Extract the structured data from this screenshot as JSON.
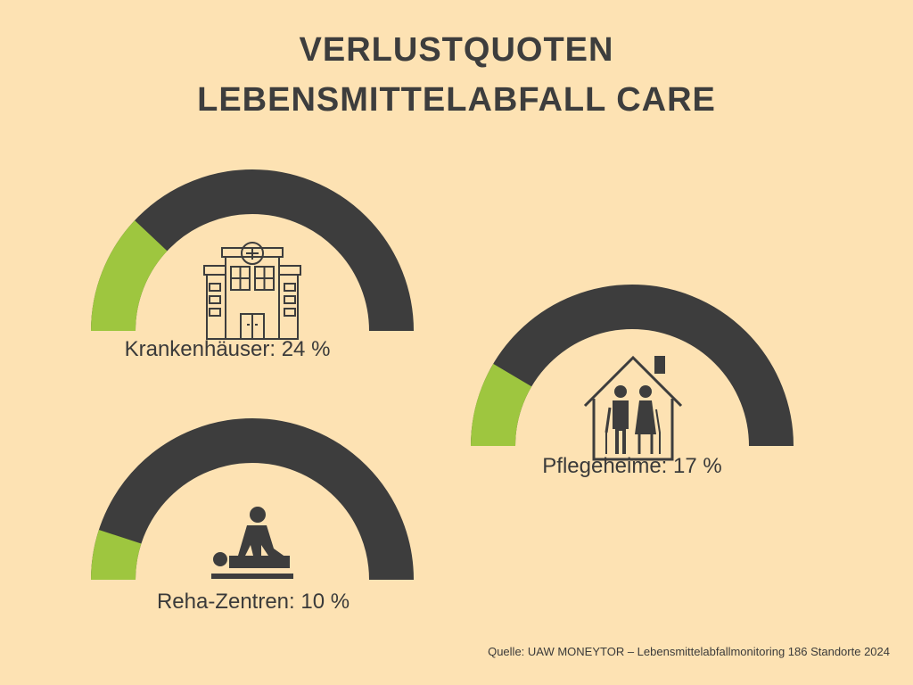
{
  "title": {
    "line1": "VERLUSTQUOTEN",
    "line2": "LEBENSMITTELABFALL CARE"
  },
  "colors": {
    "background": "#fde2b3",
    "gauge_track": "#3d3d3d",
    "gauge_value": "#9ec63f",
    "text": "#3d3d3d"
  },
  "chart_data": {
    "type": "gauge",
    "title": "VERLUSTQUOTEN LEBENSMITTELABFALL CARE",
    "unit": "%",
    "range": [
      0,
      100
    ],
    "items": [
      {
        "category": "Krankenhäuser",
        "value": 24,
        "label": "Krankenhäuser: 24 %",
        "icon": "hospital-icon"
      },
      {
        "category": "Pflegeheime",
        "value": 17,
        "label": "Pflegeheime: 17 %",
        "icon": "elderly-home-icon"
      },
      {
        "category": "Reha-Zentren",
        "value": 10,
        "label": "Reha-Zentren: 10 %",
        "icon": "physiotherapy-icon"
      }
    ]
  },
  "source": "Quelle: UAW MONEYTOR – Lebensmittelabfallmonitoring 186 Standorte 2024"
}
